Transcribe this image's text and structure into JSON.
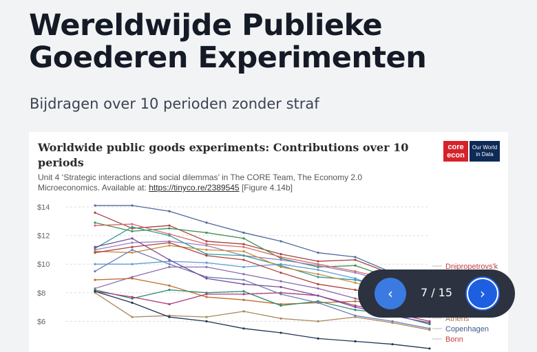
{
  "slide": {
    "title": "Wereldwijde Publieke Goederen Experimenten",
    "subtitle": "Bijdragen over 10 perioden zonder straf"
  },
  "figure": {
    "source_prefix": "Unit 4 ‘Strategic interactions and social dilemmas’ in The CORE Team, The Economy 2.0 Microeconomics. Available at: ",
    "source_link": "https://tinyco.re/2389545",
    "source_suffix": " [Figure 4.14b]",
    "logo_core_line1": "core",
    "logo_core_line2": "econ",
    "logo_owid": "Our World in Data"
  },
  "chart_data": {
    "type": "line",
    "title": "Worldwide public goods experiments: Contributions over 10 periods",
    "x": [
      1,
      2,
      3,
      4,
      5,
      6,
      7,
      8,
      9,
      10
    ],
    "yticks": [
      "$14",
      "$12",
      "$10",
      "$8",
      "$6"
    ],
    "ylim": [
      4,
      14.5
    ],
    "grid": true,
    "end_labels": [
      "Dnipropetrovs'k",
      "Athens",
      "Copenhagen",
      "Bonn"
    ],
    "series": [
      {
        "name": "",
        "color": "#4c6a9c",
        "values": [
          14.1,
          14.1,
          13.7,
          12.9,
          12.2,
          11.6,
          10.8,
          10.5,
          9.4,
          8.6
        ]
      },
      {
        "name": "",
        "color": "#a83f3f",
        "values": [
          13.6,
          12.5,
          12.7,
          11.6,
          11.4,
          10.7,
          10.2,
          10.3,
          9.3,
          8.5
        ]
      },
      {
        "name": "",
        "color": "#3f8f4c",
        "values": [
          12.9,
          12.3,
          12.5,
          12.2,
          11.8,
          10.4,
          9.8,
          9.9,
          9.0,
          8.3
        ]
      },
      {
        "name": "",
        "color": "#d66a6a",
        "values": [
          12.7,
          12.8,
          12.1,
          11.4,
          11.2,
          10.5,
          10.0,
          9.5,
          8.9,
          7.9
        ]
      },
      {
        "name": "",
        "color": "#9a7fbf",
        "values": [
          11.0,
          11.5,
          11.6,
          11.3,
          10.6,
          10.3,
          9.9,
          9.4,
          8.7,
          7.6
        ]
      },
      {
        "name": "",
        "color": "#2f9a9a",
        "values": [
          11.1,
          12.6,
          12.0,
          10.7,
          10.6,
          9.9,
          9.1,
          8.9,
          8.3,
          7.2
        ]
      },
      {
        "name": "",
        "color": "#c98a3a",
        "values": [
          10.9,
          10.8,
          11.3,
          11.0,
          10.9,
          9.8,
          9.3,
          8.7,
          8.0,
          7.0
        ]
      },
      {
        "name": "",
        "color": "#5b9bd5",
        "values": [
          10.0,
          10.0,
          10.2,
          10.1,
          9.8,
          10.0,
          9.6,
          9.0,
          8.1,
          6.8
        ]
      },
      {
        "name": "",
        "color": "#b1403b",
        "values": [
          10.8,
          11.2,
          11.5,
          10.6,
          10.3,
          9.4,
          8.6,
          8.2,
          7.6,
          6.4
        ]
      },
      {
        "name": "",
        "color": "#8c6bb1",
        "values": [
          8.3,
          9.1,
          9.8,
          9.8,
          9.3,
          8.8,
          8.3,
          7.6,
          7.0,
          6.3
        ]
      },
      {
        "name": "",
        "color": "#c16b2a",
        "values": [
          8.9,
          9.0,
          8.5,
          7.7,
          7.5,
          7.2,
          7.3,
          7.4,
          7.2,
          6.6
        ]
      },
      {
        "name": "",
        "color": "#2b8a6a",
        "values": [
          8.2,
          7.6,
          8.2,
          8.0,
          8.1,
          7.1,
          7.4,
          6.8,
          6.5,
          5.8
        ]
      },
      {
        "name": "",
        "color": "#b03a7a",
        "values": [
          8.1,
          7.7,
          7.2,
          7.9,
          7.9,
          8.0,
          7.8,
          7.1,
          6.6,
          6.0
        ]
      },
      {
        "name": "",
        "color": "#6b7db8",
        "values": [
          9.5,
          11.0,
          10.0,
          9.1,
          8.9,
          7.9,
          7.3,
          6.4,
          6.0,
          5.5
        ]
      },
      {
        "name": "",
        "color": "#a8875a",
        "values": [
          8.0,
          6.3,
          6.4,
          6.3,
          6.7,
          6.2,
          6.0,
          6.3,
          5.9,
          5.4
        ]
      },
      {
        "name": "",
        "color": "#1f3554",
        "values": [
          8.1,
          7.3,
          6.3,
          6.0,
          5.5,
          5.2,
          4.8,
          4.6,
          4.4,
          4.1
        ]
      },
      {
        "name": "",
        "color": "#7a4a9a",
        "values": [
          11.2,
          11.8,
          10.3,
          9.0,
          8.6,
          8.4,
          7.8,
          7.0,
          6.4,
          5.9
        ]
      }
    ]
  },
  "pager": {
    "prev_icon": "‹",
    "next_icon": "›",
    "counter": "7 / 15"
  }
}
